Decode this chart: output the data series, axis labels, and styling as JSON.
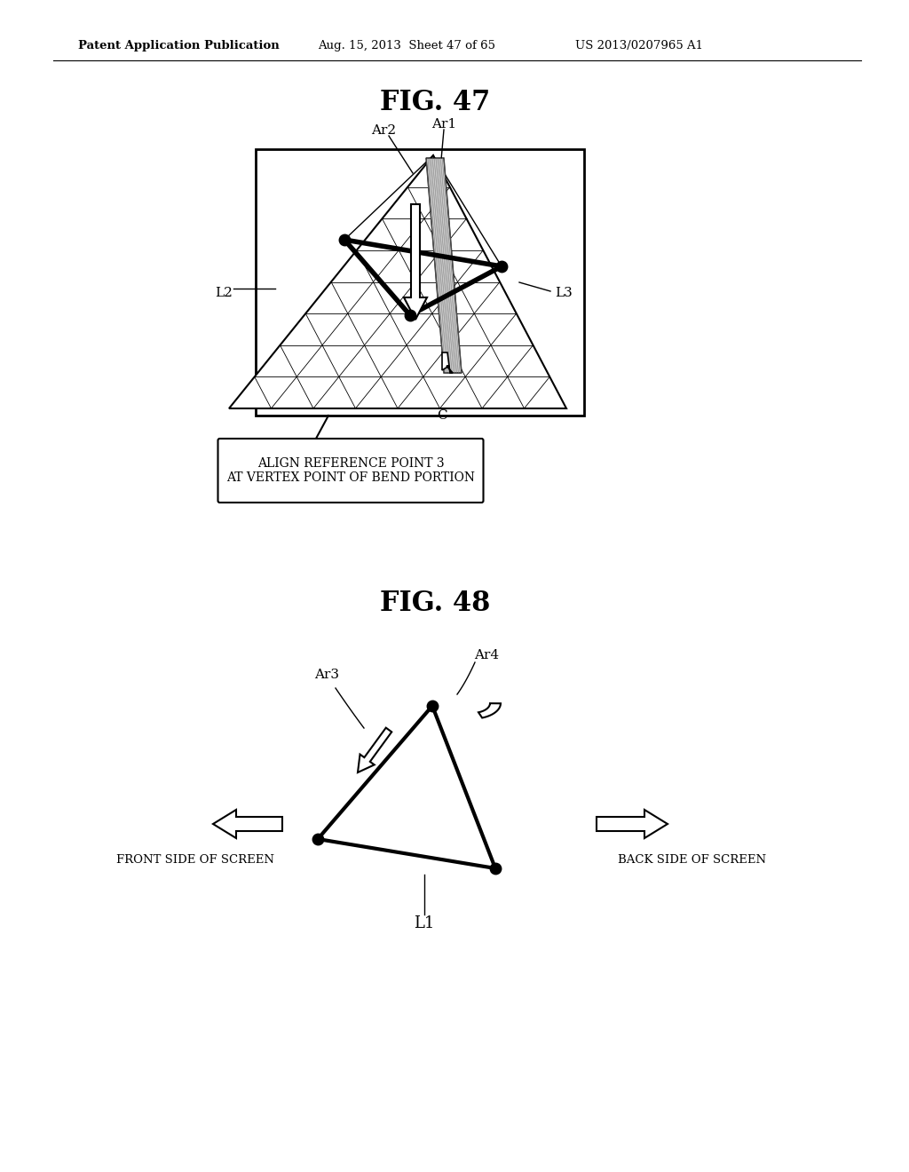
{
  "bg_color": "#ffffff",
  "header_text": "Patent Application Publication",
  "header_date": "Aug. 15, 2013  Sheet 47 of 65",
  "header_patent": "US 2013/0207965 A1",
  "fig47_title": "FIG. 47",
  "fig48_title": "FIG. 48",
  "box_label": "ALIGN REFERENCE POINT 3\nAT VERTEX POINT OF BEND PORTION",
  "label_Ar1": "Ar1",
  "label_Ar2": "Ar2",
  "label_Ar3": "Ar3",
  "label_Ar4": "Ar4",
  "label_L1": "L1",
  "label_L2": "L2",
  "label_L3": "L3",
  "label_C": "C",
  "label_front": "FRONT SIDE OF SCREEN",
  "label_back": "BACK SIDE OF SCREEN"
}
